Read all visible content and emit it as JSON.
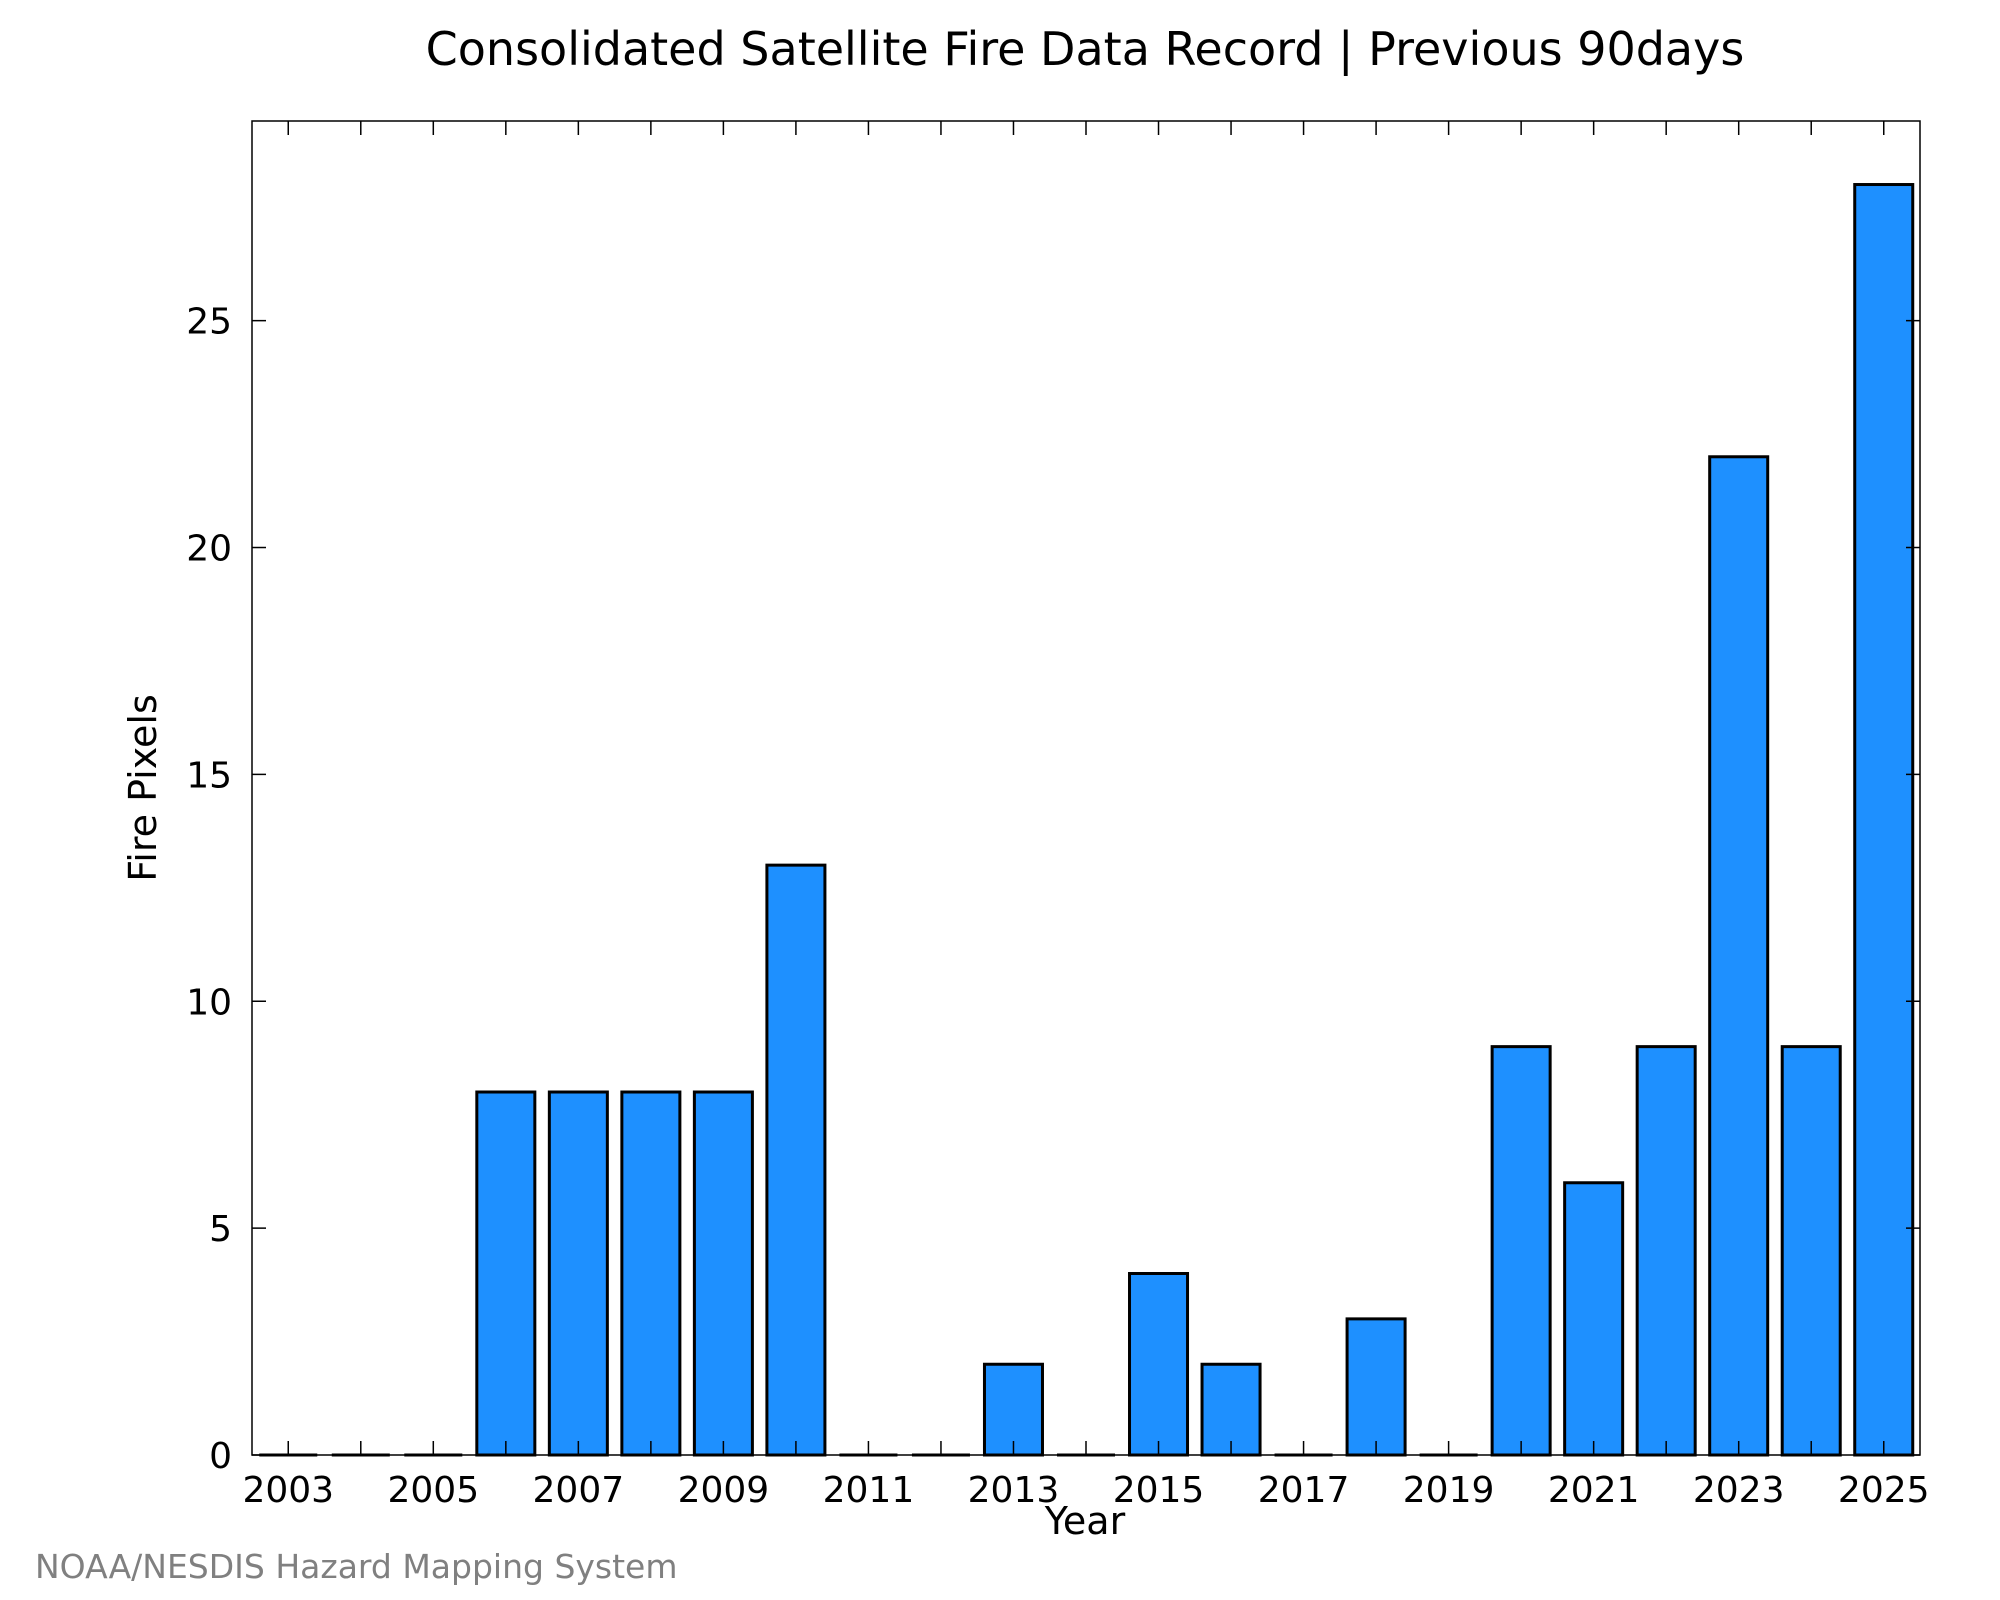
{
  "chart_data": {
    "type": "bar",
    "title": "Consolidated Satellite Fire Data Record | Previous 90days",
    "xlabel": "Year",
    "ylabel": "Fire Pixels",
    "categories": [
      "2003",
      "2004",
      "2005",
      "2006",
      "2007",
      "2008",
      "2009",
      "2010",
      "2011",
      "2012",
      "2013",
      "2014",
      "2015",
      "2016",
      "2017",
      "2018",
      "2019",
      "2020",
      "2021",
      "2022",
      "2023",
      "2024",
      "2025"
    ],
    "values": [
      0,
      0,
      0,
      8,
      8,
      8,
      8,
      13,
      0,
      0,
      2,
      0,
      4,
      2,
      0,
      3,
      0,
      9,
      6,
      9,
      22,
      9,
      28
    ],
    "x_tick_labels": [
      "2003",
      "2005",
      "2007",
      "2009",
      "2011",
      "2013",
      "2015",
      "2017",
      "2019",
      "2021",
      "2023",
      "2025"
    ],
    "y_ticks": [
      0,
      5,
      10,
      15,
      20,
      25
    ],
    "ylim": [
      0,
      29.4
    ],
    "grid": false,
    "bar_color": "#1e90ff",
    "bar_edge_color": "#000000"
  },
  "footer": {
    "credit": "NOAA/NESDIS Hazard Mapping System"
  }
}
